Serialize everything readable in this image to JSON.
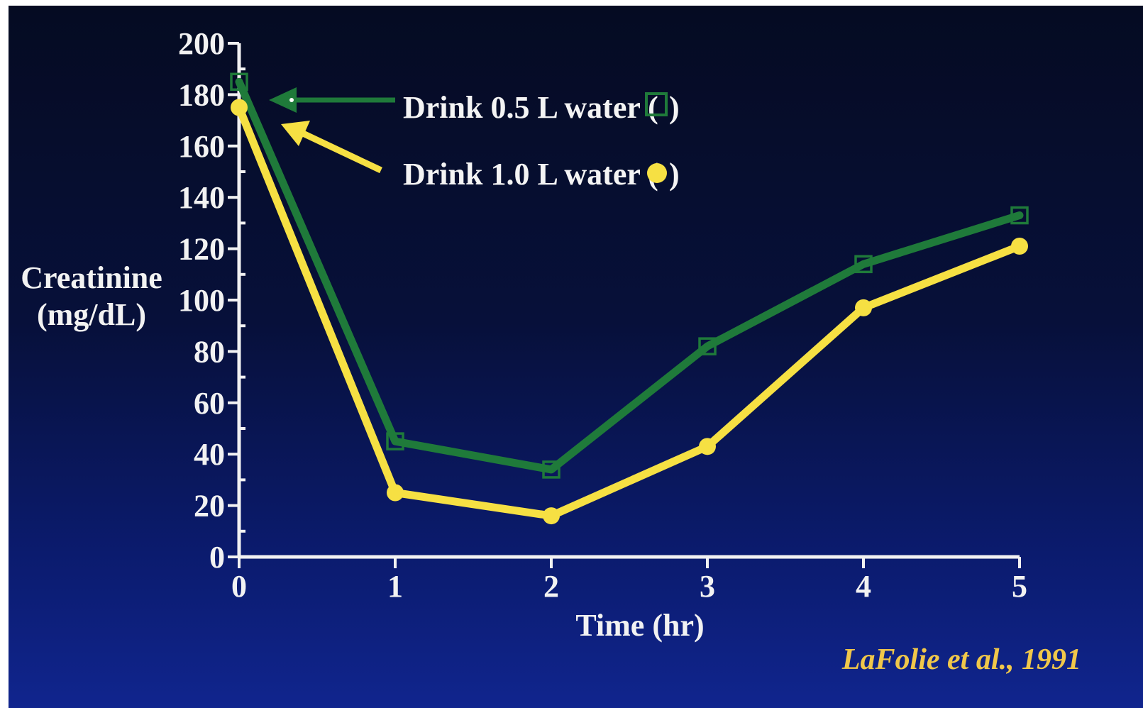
{
  "colors": {
    "series_green": "#1f7a3a",
    "series_yellow": "#f6e043",
    "axis": "#f2f2f2",
    "citation": "#f0c74a"
  },
  "chart_data": {
    "type": "line",
    "title": "",
    "xlabel": "Time (hr)",
    "ylabel": "Creatinine (mg/dL)",
    "ylabel_lines": [
      "Creatinine",
      "(mg/dL)"
    ],
    "x": [
      0,
      1,
      2,
      3,
      4,
      5
    ],
    "xlim": [
      0,
      5
    ],
    "ylim": [
      0,
      200
    ],
    "x_ticks": [
      "0",
      "1",
      "2",
      "3",
      "4",
      "5"
    ],
    "y_ticks": [
      "0",
      "20",
      "40",
      "60",
      "80",
      "100",
      "120",
      "140",
      "160",
      "180",
      "200"
    ],
    "grid": false,
    "series": [
      {
        "name": "Drink 0.5 L water",
        "marker": "square",
        "color": "#1f7a3a",
        "values": [
          185,
          45,
          34,
          82,
          114,
          133
        ]
      },
      {
        "name": "Drink 1.0 L water",
        "marker": "circle",
        "color": "#f6e043",
        "values": [
          175,
          25,
          16,
          43,
          97,
          121
        ]
      }
    ],
    "annotations": {
      "legend_green_prefix": "Drink 0.5 L water (",
      "legend_yellow_prefix": "Drink 1.0 L water (",
      "legend_suffix": ")"
    },
    "citation": "LaFolie et al., 1991"
  }
}
